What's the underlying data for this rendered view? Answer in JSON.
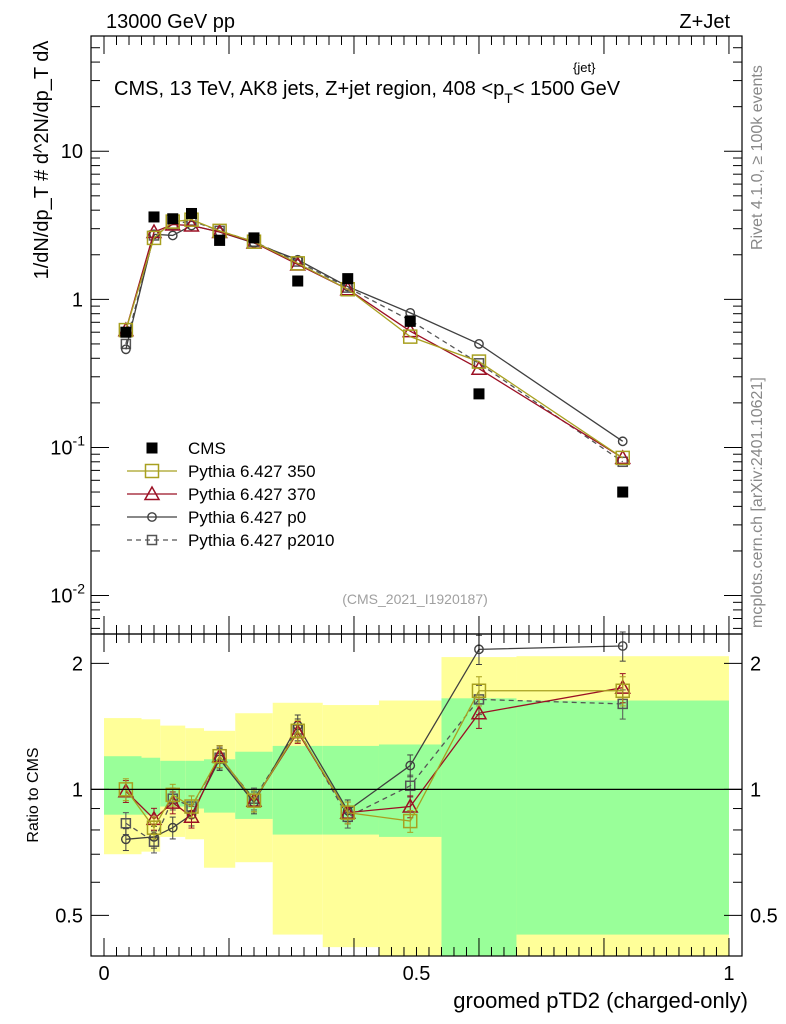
{
  "header": {
    "left": "13000 GeV pp",
    "right": "Z+Jet"
  },
  "side": {
    "rivet": "Rivet 4.1.0, ≥ 100k events",
    "mcplots": "mcplots.cern.ch [arXiv:2401.10621]"
  },
  "chart_data": [
    {
      "type": "line",
      "panel": "main",
      "title": "CMS, 13 TeV, AK8 jets, Z+jet region, 408 <p_T^{jet}< 1500 GeV",
      "title_prefix": "CMS, 13 TeV, AK8 jets, Z+jet region, 408 <p",
      "title_suffix": "< 1500 GeV",
      "title_sub": "T",
      "title_sup": "{jet}",
      "watermark": "(CMS_2021_I1920187)",
      "ylabel": "1/dN/dp_T # d^2N/dp_T dλ",
      "yscale": "log",
      "ylim": [
        0.0055,
        60
      ],
      "xlim": [
        0,
        1
      ],
      "ytick_labels": [
        "10^-2",
        "10^-1",
        "1",
        "10"
      ],
      "x": [
        0.035,
        0.08,
        0.11,
        0.14,
        0.185,
        0.24,
        0.31,
        0.39,
        0.49,
        0.6,
        0.83
      ],
      "series": [
        {
          "name": "CMS",
          "values": [
            0.6,
            3.6,
            3.5,
            3.8,
            2.5,
            2.6,
            1.33,
            1.38,
            0.71,
            0.23,
            0.05
          ]
        },
        {
          "name": "Pythia 6.427 350",
          "values": [
            0.62,
            2.6,
            3.35,
            3.45,
            2.9,
            2.45,
            1.75,
            1.17,
            0.56,
            0.38,
            0.085
          ]
        },
        {
          "name": "Pythia 6.427 370",
          "values": [
            0.62,
            2.85,
            3.2,
            3.15,
            2.85,
            2.42,
            1.72,
            1.17,
            0.61,
            0.34,
            0.085
          ]
        },
        {
          "name": "Pythia 6.427 p0",
          "values": [
            0.46,
            2.75,
            2.7,
            3.15,
            2.85,
            2.4,
            1.85,
            1.22,
            0.81,
            0.5,
            0.11
          ]
        },
        {
          "name": "Pythia 6.427 p2010",
          "values": [
            0.5,
            2.7,
            3.2,
            3.4,
            2.9,
            2.45,
            1.8,
            1.2,
            0.72,
            0.37,
            0.08
          ]
        }
      ],
      "legend": [
        "CMS",
        "Pythia 6.427 350",
        "Pythia 6.427 370",
        "Pythia 6.427 p0",
        "Pythia 6.427 p2010"
      ]
    },
    {
      "type": "line",
      "panel": "ratio",
      "ylabel": "Ratio to CMS",
      "xlabel": "groomed pTD2 (charged-only)",
      "ylim": [
        0.4,
        2.35
      ],
      "xlim": [
        0,
        1
      ],
      "xtick_labels": [
        "0",
        "0.5",
        "1"
      ],
      "ytick_labels": [
        "0.5",
        "1",
        "2"
      ],
      "x": [
        0.035,
        0.08,
        0.11,
        0.14,
        0.185,
        0.24,
        0.31,
        0.39,
        0.49,
        0.6,
        0.83
      ],
      "bin_edges": [
        0,
        0.06,
        0.09,
        0.13,
        0.16,
        0.21,
        0.27,
        0.35,
        0.44,
        0.54,
        0.66,
        1.0
      ],
      "band_inner": [
        [
          0.87,
          1.2
        ],
        [
          0.87,
          1.19
        ],
        [
          0.91,
          1.17
        ],
        [
          0.9,
          1.17
        ],
        [
          0.88,
          1.18
        ],
        [
          0.85,
          1.23
        ],
        [
          0.78,
          1.27
        ],
        [
          0.78,
          1.27
        ],
        [
          0.77,
          1.28
        ],
        [
          0.3,
          1.65
        ],
        [
          0.45,
          1.63
        ]
      ],
      "band_outer": [
        [
          0.7,
          1.48
        ],
        [
          0.71,
          1.47
        ],
        [
          0.77,
          1.42
        ],
        [
          0.76,
          1.4
        ],
        [
          0.65,
          1.38
        ],
        [
          0.67,
          1.52
        ],
        [
          0.45,
          1.61
        ],
        [
          0.42,
          1.59
        ],
        [
          0.39,
          1.63
        ],
        [
          0.3,
          2.07
        ],
        [
          0.3,
          2.08
        ]
      ],
      "series": [
        {
          "name": "Pythia 6.427 350",
          "values": [
            1.0,
            0.81,
            0.97,
            0.91,
            1.2,
            0.94,
            1.38,
            0.88,
            0.84,
            1.72,
            1.72
          ]
        },
        {
          "name": "Pythia 6.427 370",
          "values": [
            0.99,
            0.85,
            0.93,
            0.86,
            1.2,
            0.94,
            1.37,
            0.88,
            0.91,
            1.52,
            1.75
          ]
        },
        {
          "name": "Pythia 6.427 p0",
          "values": [
            0.76,
            0.77,
            0.81,
            0.87,
            1.18,
            0.93,
            1.42,
            0.89,
            1.14,
            2.16,
            2.2
          ]
        },
        {
          "name": "Pythia 6.427 p2010",
          "values": [
            0.83,
            0.75,
            0.95,
            0.91,
            1.19,
            0.95,
            1.39,
            0.86,
            1.02,
            1.64,
            1.6
          ]
        }
      ]
    }
  ],
  "colors": {
    "cms": "#000000",
    "s350": "#a8a020",
    "s370": "#9b1024",
    "p0": "#404040",
    "p2010": "#555555",
    "band_outer": "#ffff99",
    "band_inner": "#99ff99"
  }
}
